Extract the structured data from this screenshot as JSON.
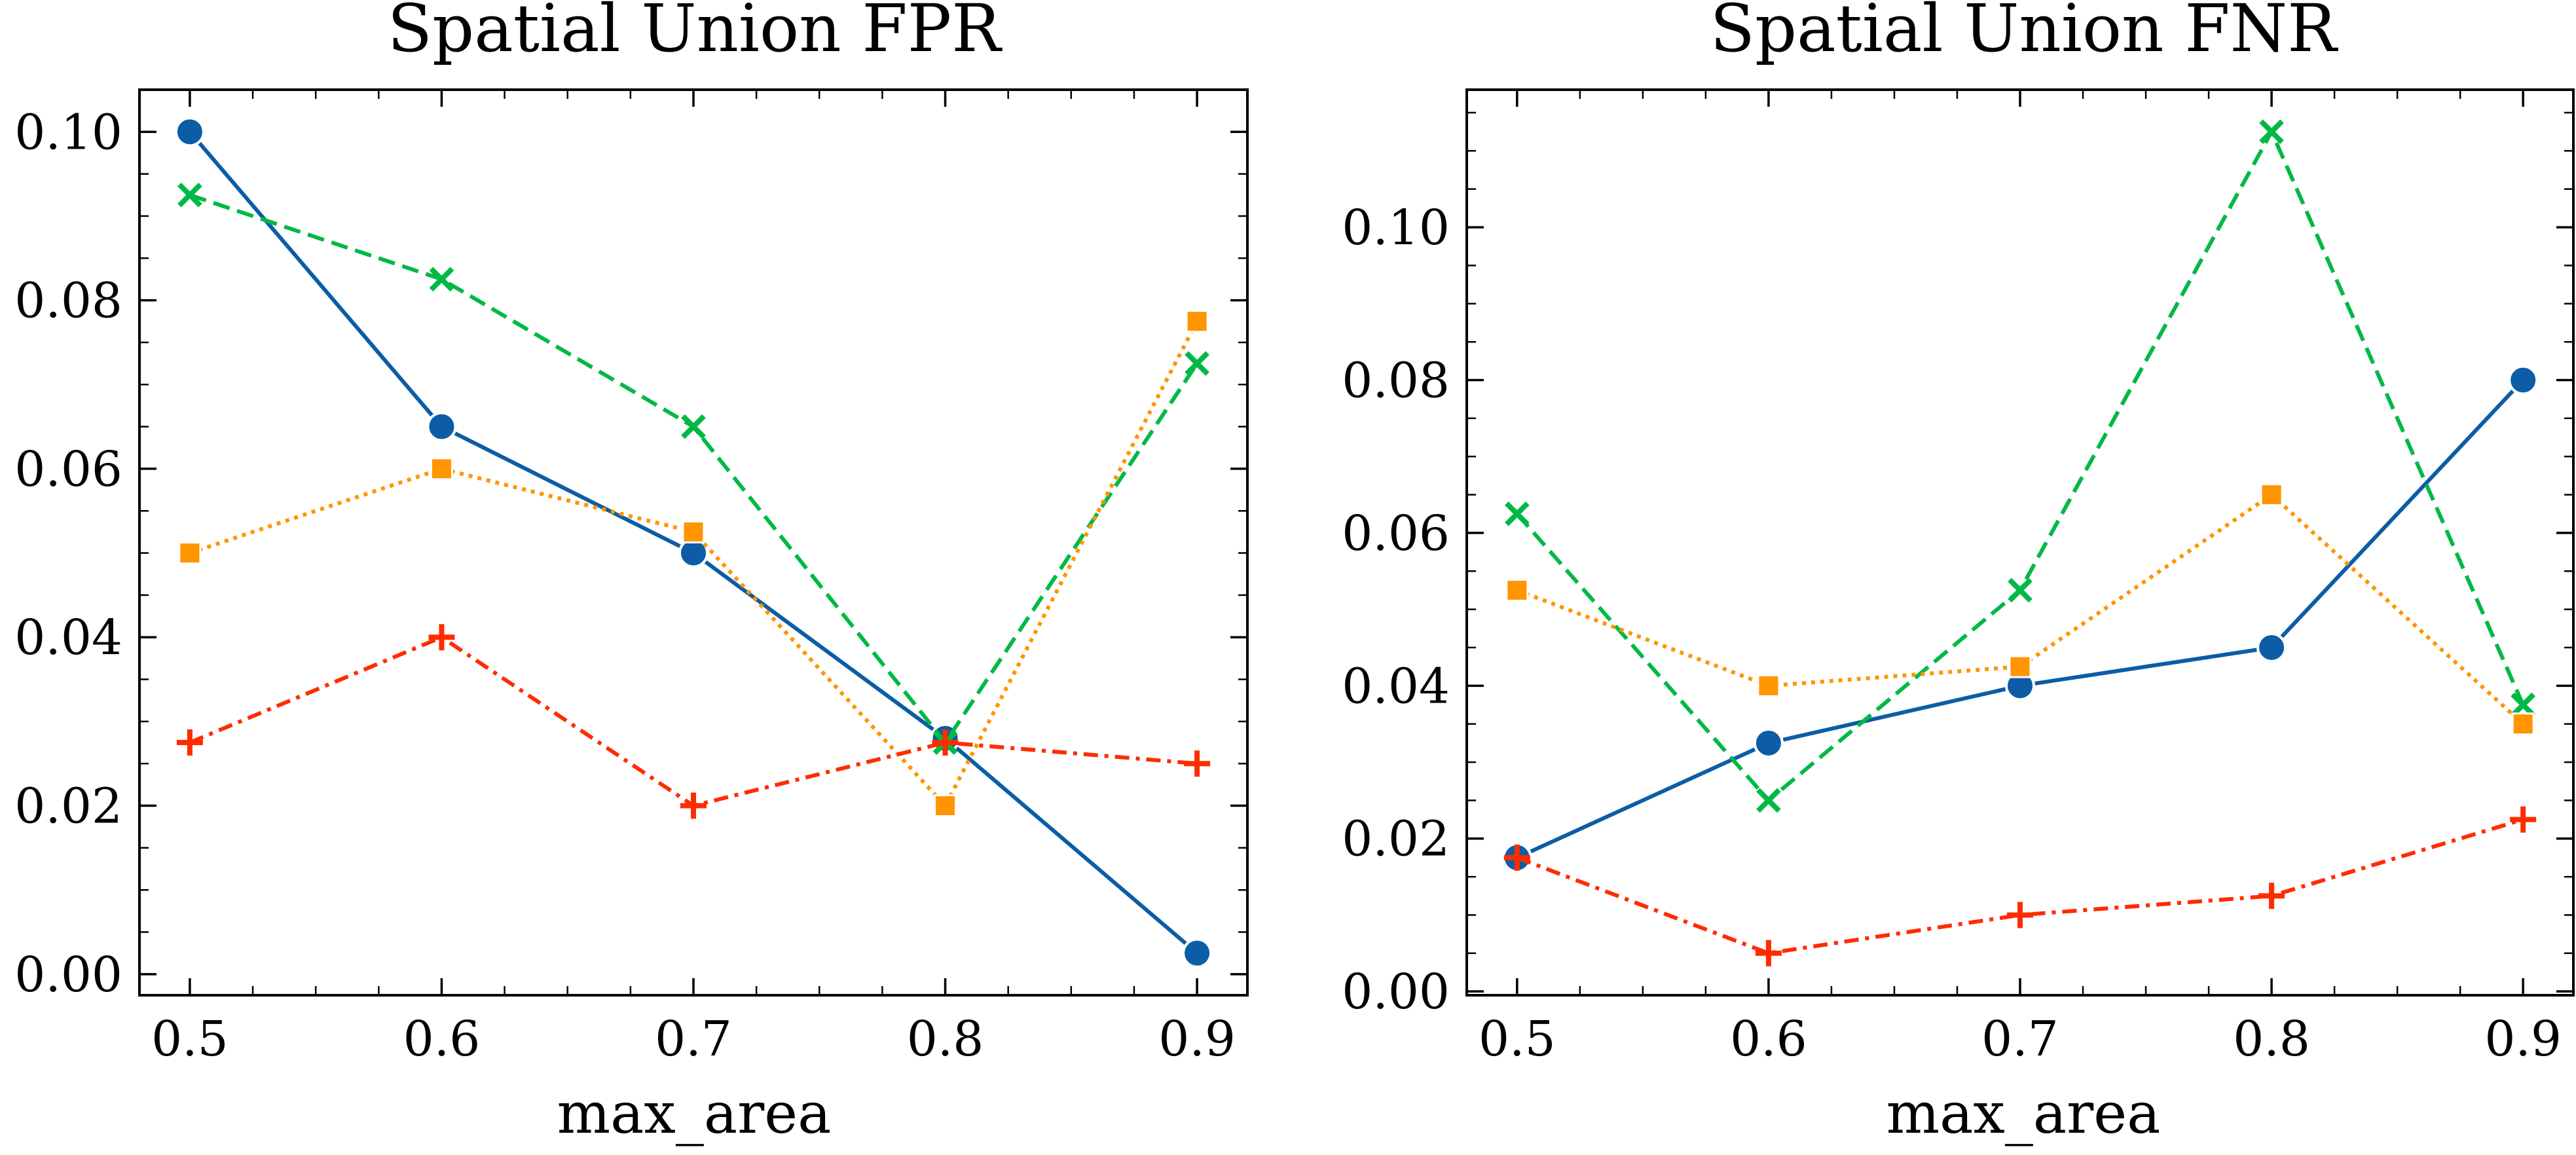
{
  "chart_data": [
    {
      "type": "line",
      "title": "Spatial Union FPR",
      "xlabel": "max_area",
      "ylabel": "",
      "xlim": [
        0.48,
        0.92
      ],
      "ylim": [
        -0.0025,
        0.105
      ],
      "xticks": [
        "0.5",
        "0.6",
        "0.7",
        "0.8",
        "0.9"
      ],
      "yticks": [
        "0.00",
        "0.02",
        "0.04",
        "0.06",
        "0.08",
        "0.10"
      ],
      "grid": false,
      "x": [
        0.5,
        0.6,
        0.7,
        0.8,
        0.9
      ],
      "series": [
        {
          "color": "#0C5DA5",
          "marker": "circle",
          "linestyle": "solid",
          "values": [
            0.1,
            0.065,
            0.05,
            0.028,
            0.0025
          ]
        },
        {
          "color": "#00B945",
          "marker": "x",
          "linestyle": "dashed",
          "values": [
            0.0925,
            0.0825,
            0.065,
            0.0275,
            0.0725
          ]
        },
        {
          "color": "#FF9500",
          "marker": "square",
          "linestyle": "dotted",
          "values": [
            0.05,
            0.06,
            0.0525,
            0.02,
            0.0775
          ]
        },
        {
          "color": "#FF2C00",
          "marker": "plus",
          "linestyle": "dashdot",
          "values": [
            0.0275,
            0.04,
            0.02,
            0.0275,
            0.025
          ]
        }
      ]
    },
    {
      "type": "line",
      "title": "Spatial Union FNR",
      "xlabel": "max_area",
      "ylabel": "",
      "xlim": [
        0.48,
        0.92
      ],
      "ylim": [
        -0.0005,
        0.118
      ],
      "xticks": [
        "0.5",
        "0.6",
        "0.7",
        "0.8",
        "0.9"
      ],
      "yticks": [
        "0.00",
        "0.02",
        "0.04",
        "0.06",
        "0.08",
        "0.10"
      ],
      "grid": false,
      "x": [
        0.5,
        0.6,
        0.7,
        0.8,
        0.9
      ],
      "series": [
        {
          "color": "#0C5DA5",
          "marker": "circle",
          "linestyle": "solid",
          "values": [
            0.0175,
            0.0325,
            0.04,
            0.045,
            0.08
          ]
        },
        {
          "color": "#00B945",
          "marker": "x",
          "linestyle": "dashed",
          "values": [
            0.0625,
            0.025,
            0.0525,
            0.1125,
            0.0375
          ]
        },
        {
          "color": "#FF9500",
          "marker": "square",
          "linestyle": "dotted",
          "values": [
            0.0525,
            0.04,
            0.0425,
            0.065,
            0.035
          ]
        },
        {
          "color": "#FF2C00",
          "marker": "plus",
          "linestyle": "dashdot",
          "values": [
            0.0175,
            0.005,
            0.01,
            0.0125,
            0.0225
          ]
        }
      ]
    }
  ]
}
